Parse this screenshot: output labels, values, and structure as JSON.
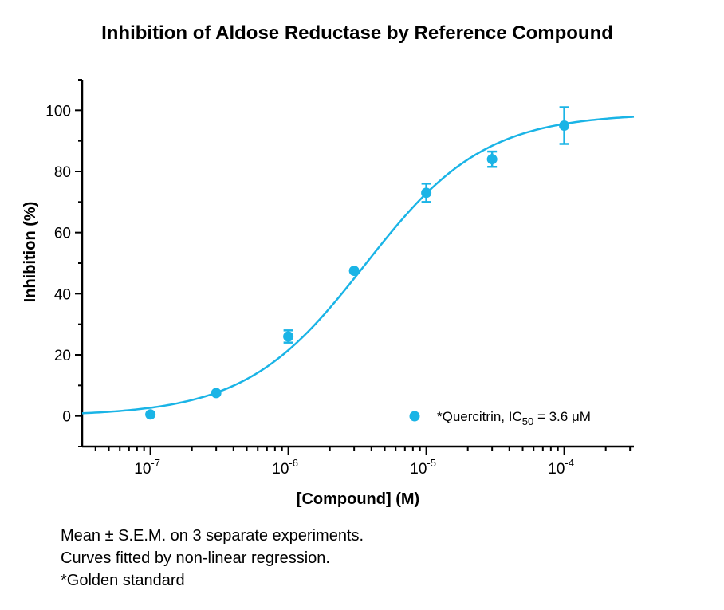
{
  "chart_data": {
    "type": "scatter",
    "title": "Inhibition of Aldose Reductase by Reference Compound",
    "xlabel": "[Compound] (M)",
    "ylabel": "Inhibition (%)",
    "x_scale": "log",
    "xlim": [
      3.2e-08,
      0.00032
    ],
    "ylim": [
      -10,
      110
    ],
    "x_ticks": [
      {
        "base": "10",
        "exp": "-7",
        "value": 1e-07
      },
      {
        "base": "10",
        "exp": "-6",
        "value": 1e-06
      },
      {
        "base": "10",
        "exp": "-5",
        "value": 1e-05
      },
      {
        "base": "10",
        "exp": "-4",
        "value": 0.0001
      }
    ],
    "y_ticks": [
      "0",
      "20",
      "40",
      "60",
      "80",
      "100"
    ],
    "series": [
      {
        "name": "*Quercitrin",
        "legend_main": "*Quercitrin, IC",
        "legend_sub": "50",
        "legend_tail": " = 3.6 μM",
        "color": "#1ab4e6",
        "points": [
          {
            "x": 1e-07,
            "y": 0.5,
            "sem": 0
          },
          {
            "x": 3e-07,
            "y": 7.5,
            "sem": 0
          },
          {
            "x": 1e-06,
            "y": 26,
            "sem": 2
          },
          {
            "x": 3e-06,
            "y": 47.5,
            "sem": 0
          },
          {
            "x": 1e-05,
            "y": 73,
            "sem": 3
          },
          {
            "x": 3e-05,
            "y": 84,
            "sem": 2.5
          },
          {
            "x": 0.0001,
            "y": 95,
            "sem": 6
          }
        ],
        "fit": {
          "model": "four-parameter logistic",
          "bottom": 0,
          "top": 99,
          "ic50": 3.6e-06,
          "hill": 1
        }
      }
    ]
  },
  "notes": [
    "Mean ± S.E.M. on 3 separate experiments.",
    "Curves fitted by non-linear regression.",
    "*Golden standard"
  ]
}
